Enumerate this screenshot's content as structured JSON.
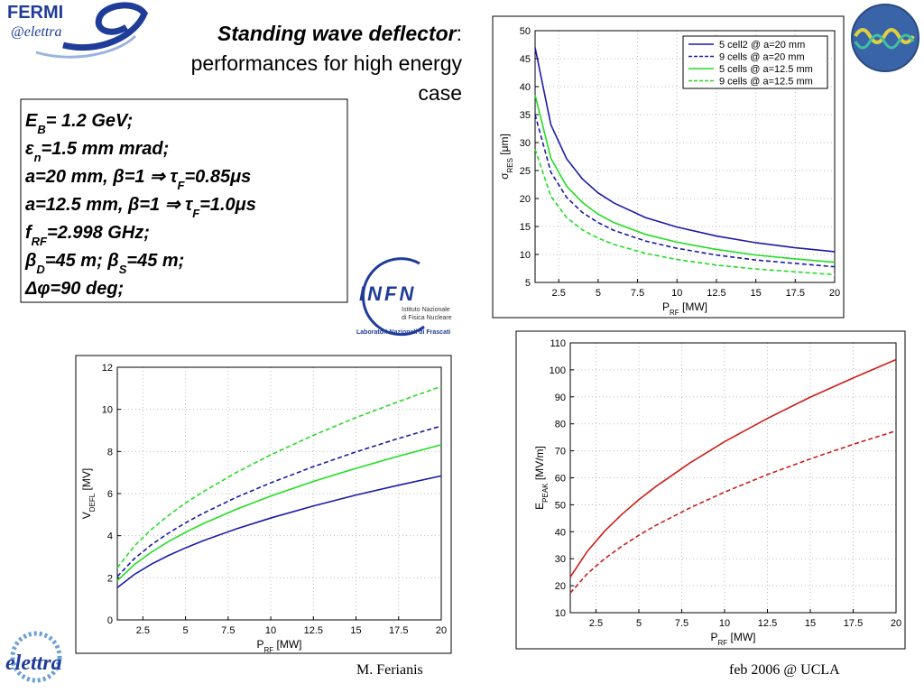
{
  "title": {
    "emph": "Standing wave deflector",
    "colon": ":",
    "lines": [
      "performances for high energy",
      "case"
    ]
  },
  "parameters": [
    [
      {
        "t": "E"
      },
      {
        "s": "B"
      },
      {
        "t": "= 1.2 GeV;"
      }
    ],
    [
      {
        "t": "ε"
      },
      {
        "s": "n"
      },
      {
        "t": "=1.5 mm mrad;"
      }
    ],
    [
      {
        "t": "a=20 mm, β=1 ⇒ τ"
      },
      {
        "s": "F"
      },
      {
        "t": "=0.85μs"
      }
    ],
    [
      {
        "t": "a=12.5 mm, β=1 ⇒ τ"
      },
      {
        "s": "F"
      },
      {
        "t": "=1.0μs"
      }
    ],
    [
      {
        "t": "f"
      },
      {
        "s": "RF"
      },
      {
        "t": "=2.998 GHz;"
      }
    ],
    [
      {
        "t": "β"
      },
      {
        "s": "D"
      },
      {
        "t": "=45 m; β"
      },
      {
        "s": "S"
      },
      {
        "t": "=45 m;"
      }
    ],
    [
      {
        "t": "Δφ=90 deg;"
      }
    ]
  ],
  "logos": {
    "fermi": "FERMI",
    "elettra_at": "@elettra",
    "infn": "INFN",
    "infn_lines": [
      "Istituto Nazionale",
      "di Fisica Nucleare"
    ],
    "infn_lab": "Laboratori Nazionali di Frascati",
    "elettra": "elettra"
  },
  "footer": {
    "author": "M. Ferianis",
    "event": "feb 2006 @ UCLA"
  },
  "chart_data": [
    {
      "type": "line",
      "xlabel": {
        "main": "P",
        "sub": "RF",
        "unit": " [MW]"
      },
      "ylabel": {
        "main": "σ",
        "sub": "RES",
        "unit": " [μm]"
      },
      "x": [
        1,
        2,
        3,
        4,
        5,
        6,
        8,
        10,
        12.5,
        15,
        17.5,
        20
      ],
      "xlim": [
        1,
        20
      ],
      "xticks": [
        2.5,
        5,
        7.5,
        10,
        12.5,
        15,
        17.5,
        20
      ],
      "ylim": [
        5,
        50
      ],
      "yticks": [
        5,
        10,
        15,
        20,
        25,
        30,
        35,
        40,
        45,
        50
      ],
      "grid": true,
      "legend": "upper right",
      "series": [
        {
          "name": "5 cell2 @ a=20 mm",
          "color": "#1a1aa8",
          "dashed": false,
          "values": [
            47,
            33.2,
            27.1,
            23.5,
            21.0,
            19.2,
            16.6,
            14.9,
            13.3,
            12.1,
            11.2,
            10.5
          ]
        },
        {
          "name": "9 cells @ a=20 mm",
          "color": "#1a1aa8",
          "dashed": true,
          "values": [
            35,
            24.7,
            20.2,
            17.5,
            15.7,
            14.3,
            12.4,
            11.1,
            9.9,
            9.0,
            8.4,
            7.8
          ]
        },
        {
          "name": "5 cells @ a=12.5 mm",
          "color": "#22dd22",
          "dashed": false,
          "values": [
            38.5,
            27.2,
            22.2,
            19.3,
            17.2,
            15.7,
            13.6,
            12.2,
            10.9,
            9.9,
            9.2,
            8.6
          ]
        },
        {
          "name": "9 cells @ a=12.5 mm",
          "color": "#22dd22",
          "dashed": true,
          "values": [
            28.8,
            20.4,
            16.6,
            14.4,
            12.9,
            11.8,
            10.2,
            9.1,
            8.1,
            7.4,
            6.9,
            6.4
          ]
        }
      ]
    },
    {
      "type": "line",
      "xlabel": {
        "main": "P",
        "sub": "RF",
        "unit": " [MW]"
      },
      "ylabel": {
        "main": "V",
        "sub": "DEFL",
        "unit": " [MV]"
      },
      "x": [
        1,
        2,
        3,
        4,
        5,
        6,
        8,
        10,
        12.5,
        15,
        17.5,
        20
      ],
      "xlim": [
        1,
        20
      ],
      "xticks": [
        2.5,
        5,
        7.5,
        10,
        12.5,
        15,
        17.5,
        20
      ],
      "ylim": [
        0,
        12
      ],
      "yticks": [
        0,
        2,
        4,
        6,
        8,
        10,
        12
      ],
      "grid": true,
      "series": [
        {
          "color": "#1a1aa8",
          "dashed": false,
          "values": [
            1.53,
            2.16,
            2.65,
            3.06,
            3.42,
            3.75,
            4.33,
            4.84,
            5.41,
            5.93,
            6.4,
            6.84
          ]
        },
        {
          "color": "#1a1aa8",
          "dashed": true,
          "values": [
            2.06,
            2.91,
            3.57,
            4.12,
            4.61,
            5.05,
            5.83,
            6.51,
            7.28,
            7.98,
            8.62,
            9.21
          ]
        },
        {
          "color": "#22dd22",
          "dashed": false,
          "values": [
            1.86,
            2.63,
            3.22,
            3.72,
            4.16,
            4.56,
            5.26,
            5.88,
            6.58,
            7.2,
            7.78,
            8.32
          ]
        },
        {
          "color": "#22dd22",
          "dashed": true,
          "values": [
            2.48,
            3.51,
            4.3,
            4.96,
            5.55,
            6.07,
            7.01,
            7.84,
            8.77,
            9.61,
            10.37,
            11.09
          ]
        }
      ]
    },
    {
      "type": "line",
      "xlabel": {
        "main": "P",
        "sub": "RF",
        "unit": " [MW]"
      },
      "ylabel": {
        "main": "E",
        "sub": "PEAK",
        "unit": " [MV/m]"
      },
      "x": [
        1,
        2,
        3,
        4,
        5,
        6,
        8,
        10,
        12.5,
        15,
        17.5,
        20
      ],
      "xlim": [
        1,
        20
      ],
      "xticks": [
        2.5,
        5,
        7.5,
        10,
        12.5,
        15,
        17.5,
        20
      ],
      "ylim": [
        10,
        110
      ],
      "yticks": [
        10,
        20,
        30,
        40,
        50,
        60,
        70,
        80,
        90,
        100,
        110
      ],
      "grid": true,
      "series": [
        {
          "color": "#cc1f1a",
          "dashed": false,
          "values": [
            23.2,
            32.8,
            40.2,
            46.4,
            51.9,
            56.8,
            65.6,
            73.4,
            82.0,
            89.9,
            97.0,
            103.8
          ]
        },
        {
          "color": "#cc1f1a",
          "dashed": true,
          "values": [
            17.3,
            24.5,
            30.0,
            34.6,
            38.7,
            42.4,
            48.9,
            54.7,
            61.2,
            67.0,
            72.4,
            77.4
          ]
        }
      ]
    }
  ]
}
